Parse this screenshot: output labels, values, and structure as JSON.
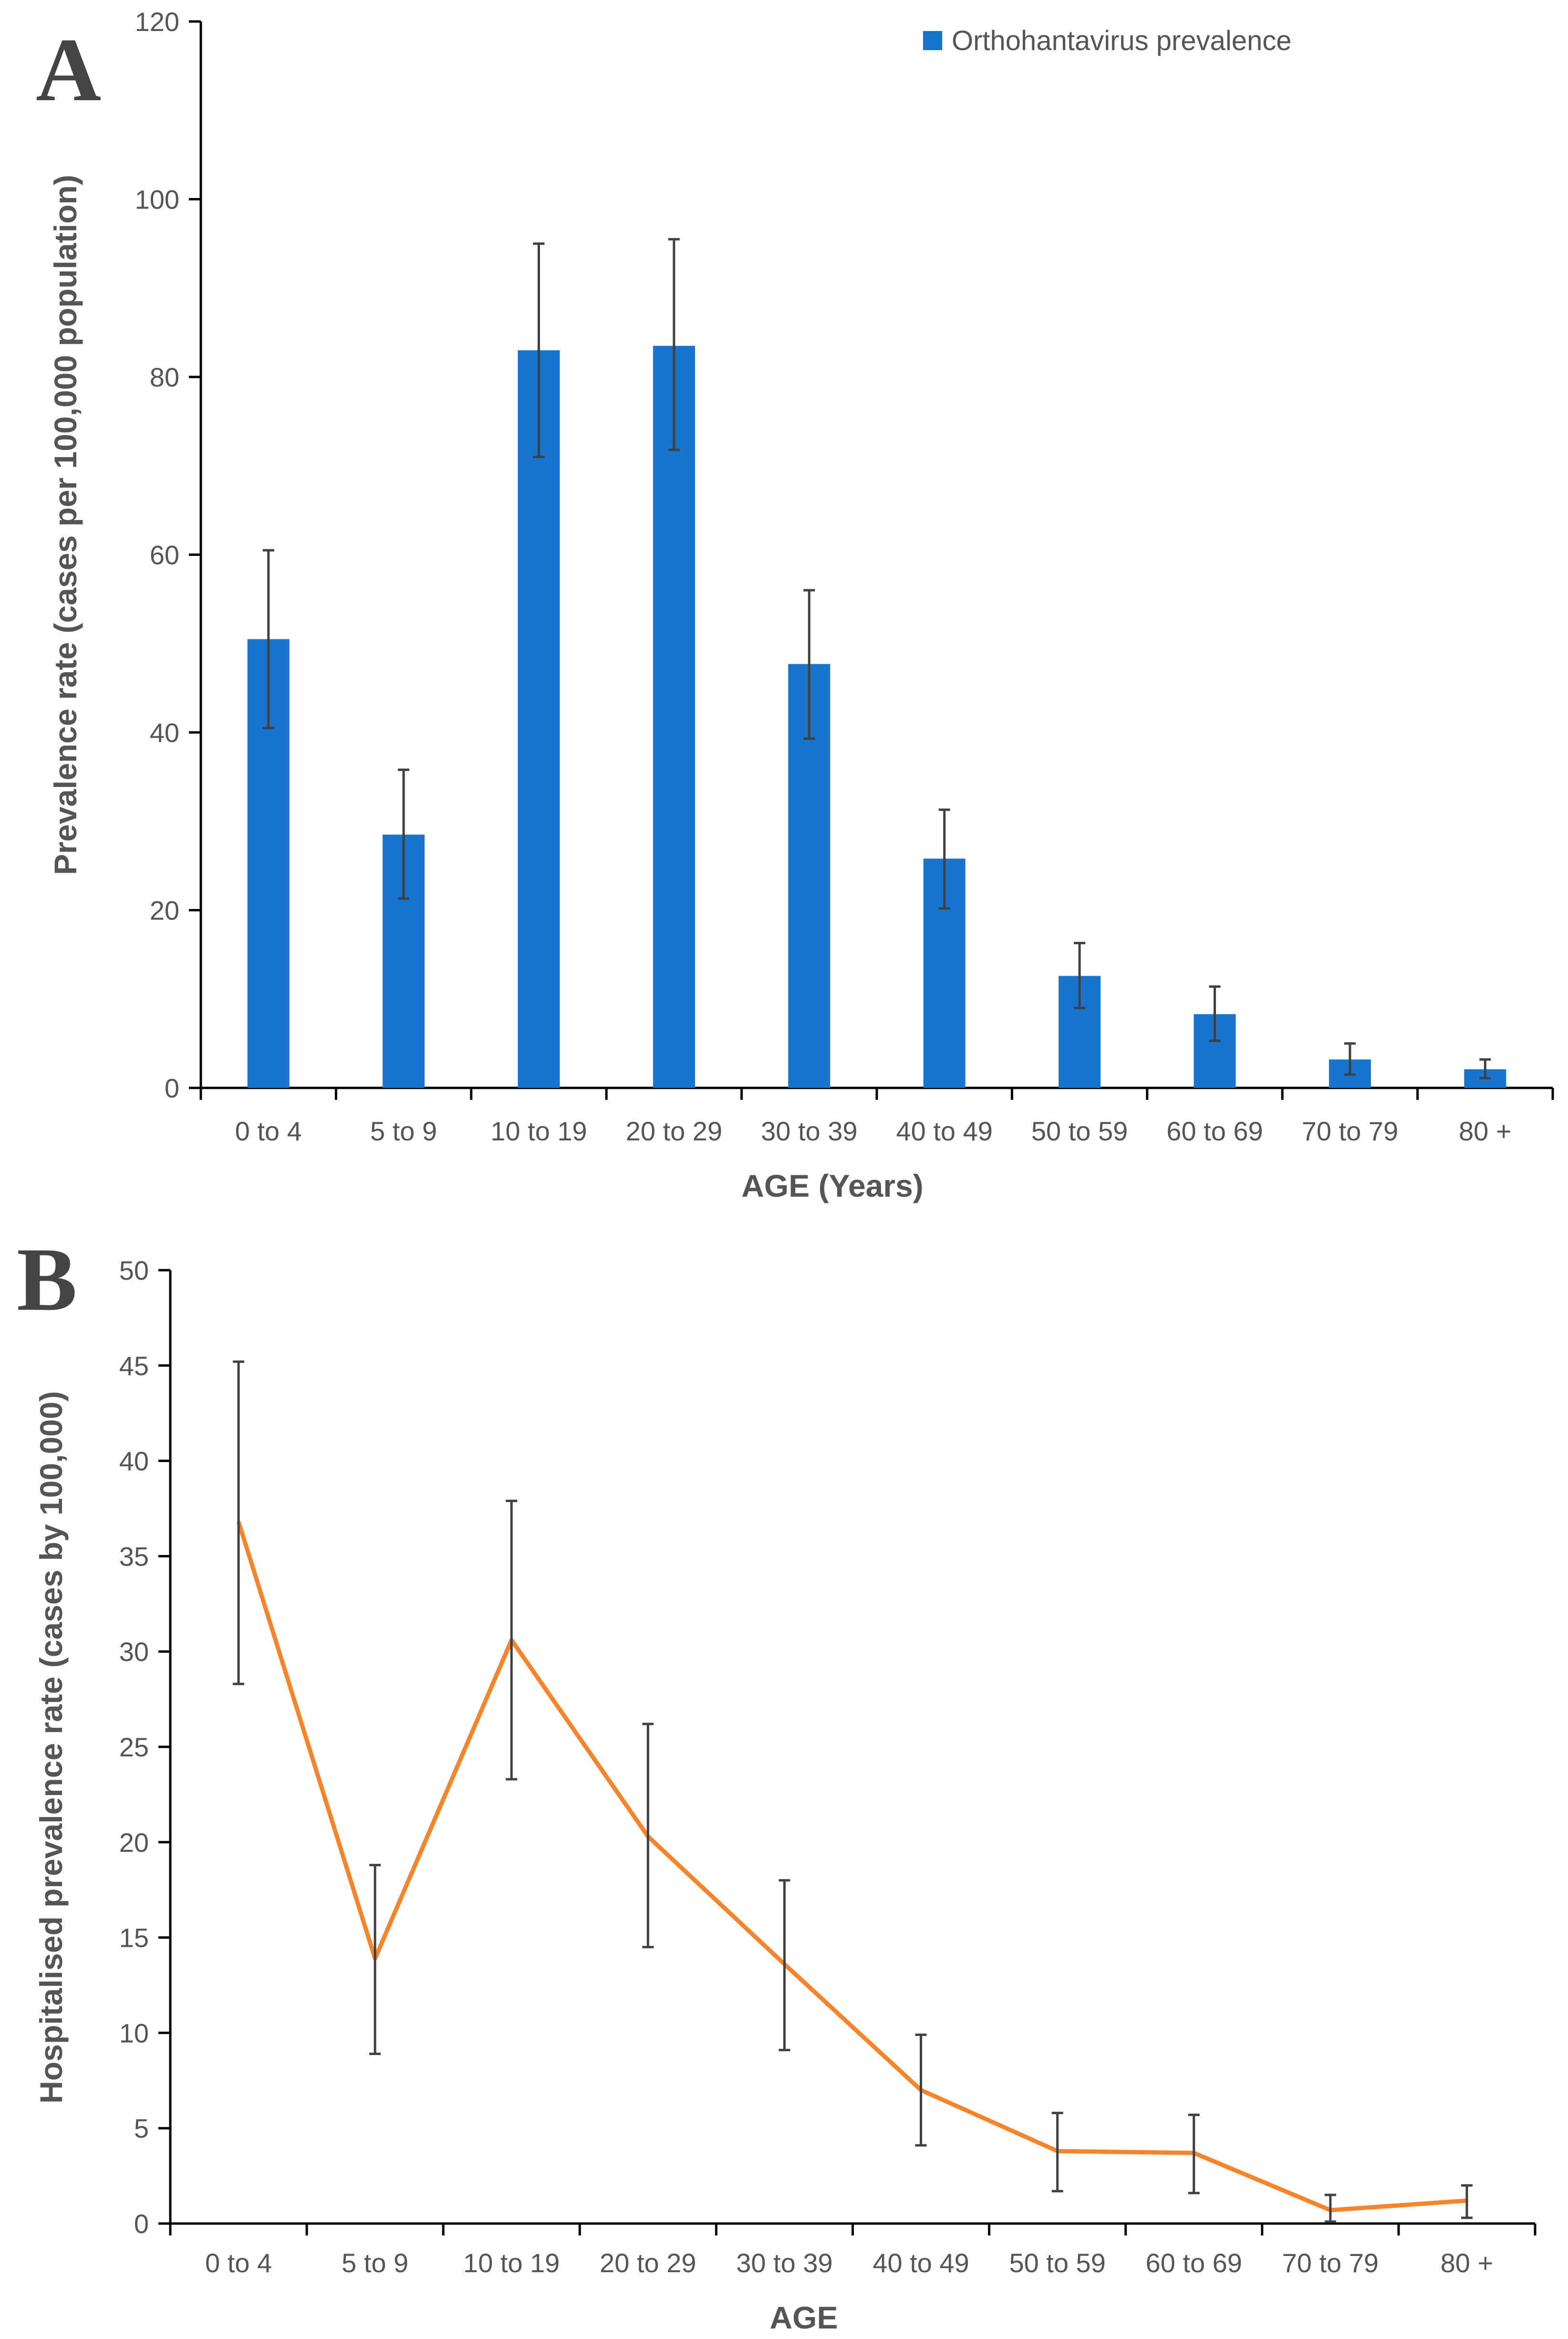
{
  "colors": {
    "bar": "#1874CD",
    "line": "#F5842B",
    "errorbar": "#404040",
    "axis": "#000000",
    "text": "#555555"
  },
  "chart_data": [
    {
      "panel_label": "A",
      "type": "bar",
      "legend": "Orthohantavirus prevalence",
      "categories": [
        "0 to 4",
        "5 to 9",
        "10 to 19",
        "20 to 29",
        "30 to 39",
        "40 to 49",
        "50 to 59",
        "60 to 69",
        "70 to 79",
        "80 +"
      ],
      "values": [
        50.5,
        28.5,
        83,
        83.5,
        47.7,
        25.8,
        12.6,
        8.3,
        3.2,
        2.1
      ],
      "error_low": [
        40.5,
        21.3,
        71,
        71.8,
        39.3,
        20.2,
        9.0,
        5.3,
        1.5,
        1.1
      ],
      "error_high": [
        60.5,
        35.8,
        95,
        95.5,
        56.0,
        31.3,
        16.3,
        11.4,
        5.0,
        3.2
      ],
      "xlabel": "AGE (Years)",
      "ylabel": "Prevalence rate (cases per 100,000 population)",
      "ylim": [
        0,
        120
      ],
      "yticks": [
        "0",
        "20",
        "40",
        "60",
        "80",
        "100",
        "120"
      ]
    },
    {
      "panel_label": "B",
      "type": "line",
      "categories": [
        "0 to 4",
        "5 to 9",
        "10 to 19",
        "20 to 29",
        "30 to 39",
        "40 to 49",
        "50 to 59",
        "60 to 69",
        "70 to 79",
        "80 +"
      ],
      "values": [
        36.8,
        13.9,
        30.6,
        20.3,
        13.6,
        7.0,
        3.8,
        3.7,
        0.7,
        1.2
      ],
      "error_low": [
        28.3,
        8.9,
        23.3,
        14.5,
        9.1,
        4.1,
        1.7,
        1.6,
        0.1,
        0.3
      ],
      "error_high": [
        45.2,
        18.8,
        37.9,
        26.2,
        18.0,
        9.9,
        5.8,
        5.7,
        1.5,
        2.0
      ],
      "xlabel": "AGE",
      "ylabel": "Hospitalised prevalence rate (cases by 100,000)",
      "ylim": [
        0,
        50
      ],
      "yticks": [
        "0",
        "5",
        "10",
        "15",
        "20",
        "25",
        "30",
        "35",
        "40",
        "45",
        "50"
      ]
    }
  ]
}
